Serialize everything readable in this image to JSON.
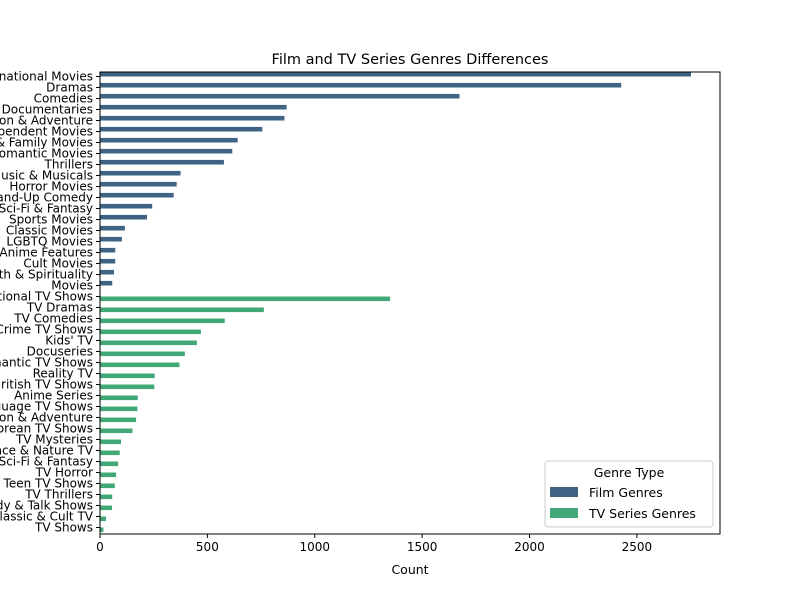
{
  "chart_data": {
    "type": "bar",
    "orientation": "horizontal",
    "title": "Film and TV Series Genres Differences",
    "xlabel": "Count",
    "ylabel": "",
    "xlim": [
      0,
      2887
    ],
    "xticks": [
      0,
      500,
      1000,
      1500,
      2000,
      2500
    ],
    "grid": false,
    "legend": {
      "title": "Genre Type",
      "placement": "lower-right",
      "entries": [
        {
          "name": "Film Genres",
          "color": "#3e6383"
        },
        {
          "name": "TV Series Genres",
          "color": "#43a877"
        }
      ]
    },
    "categories": [
      "International Movies",
      "Dramas",
      "Comedies",
      "Documentaries",
      "Action & Adventure",
      "Independent Movies",
      "Children & Family Movies",
      "Romantic Movies",
      "Thrillers",
      "Music & Musicals",
      "Horror Movies",
      "Stand-Up Comedy",
      "Sci-Fi & Fantasy",
      "Sports Movies",
      "Classic Movies",
      "LGBTQ Movies",
      "Anime Features",
      "Cult Movies",
      "Faith & Spirituality",
      "Movies",
      "International TV Shows",
      "TV Dramas",
      "TV Comedies",
      "Crime TV Shows",
      "Kids' TV",
      "Docuseries",
      "Romantic TV Shows",
      "Reality TV",
      "British TV Shows",
      "Anime Series",
      "Spanish-Language TV Shows",
      "TV Action & Adventure",
      "Korean TV Shows",
      "TV Mysteries",
      "Science & Nature TV",
      "TV Sci-Fi & Fantasy",
      "TV Horror",
      "Teen TV Shows",
      "TV Thrillers",
      "Stand-Up Comedy & Talk Shows",
      "Classic & Cult TV",
      "TV Shows"
    ],
    "series": [
      {
        "name": "Film Genres",
        "color": "#3e6383",
        "values": [
          2752,
          2427,
          1674,
          869,
          859,
          756,
          641,
          616,
          577,
          375,
          357,
          343,
          243,
          219,
          116,
          102,
          71,
          71,
          65,
          57,
          null,
          null,
          null,
          null,
          null,
          null,
          null,
          null,
          null,
          null,
          null,
          null,
          null,
          null,
          null,
          null,
          null,
          null,
          null,
          null,
          null,
          null
        ]
      },
      {
        "name": "TV Series Genres",
        "color": "#43a877",
        "values": [
          null,
          null,
          null,
          null,
          null,
          null,
          null,
          null,
          null,
          null,
          null,
          null,
          null,
          null,
          null,
          null,
          null,
          null,
          null,
          null,
          1351,
          763,
          581,
          470,
          451,
          395,
          370,
          255,
          253,
          176,
          174,
          168,
          151,
          98,
          92,
          84,
          75,
          69,
          57,
          56,
          28,
          16
        ]
      }
    ]
  }
}
